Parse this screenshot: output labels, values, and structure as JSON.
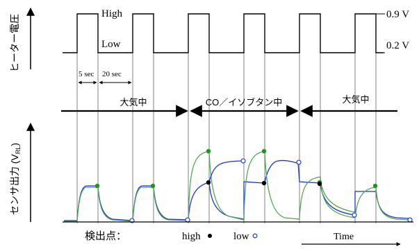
{
  "labels": {
    "heater_axis": "ヒーター電圧",
    "sensor_axis_main": "センサ出力 (V",
    "sensor_axis_sub": "RL",
    "sensor_axis_close": ")",
    "high": "High",
    "low": "Low",
    "v_high": "0.9 V",
    "v_low": "0.2 V",
    "dur_5": "5 sec",
    "dur_20": "20 sec",
    "phase_air_1": "大気中",
    "phase_co": "CO／イソブタン中",
    "phase_air_2": "大気中",
    "detect_label": "検出点：",
    "legend_high": "high",
    "legend_low": "low",
    "time": "Time"
  },
  "colors": {
    "line": "#000000",
    "grid": "#808080",
    "trace_blue": "#1f2fd6",
    "trace_green": "#4faa4f",
    "point_green": "#1a9a1a",
    "point_high": "#000000",
    "point_low": "#2f4fd6"
  }
}
